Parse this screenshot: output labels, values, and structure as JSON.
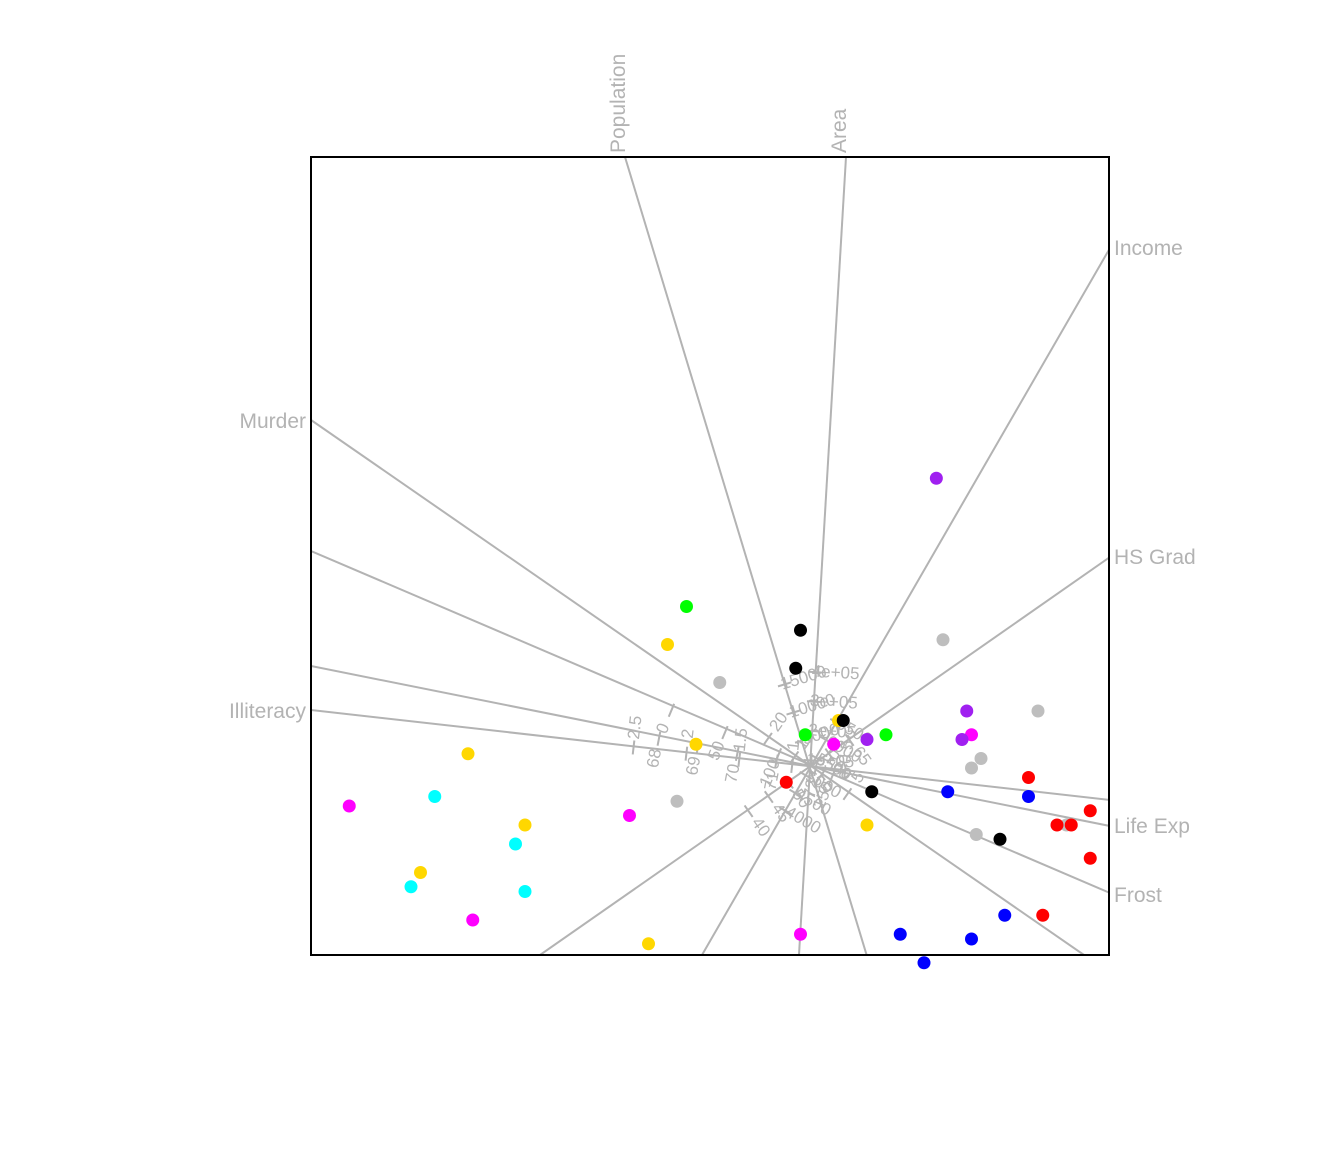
{
  "chart_data": {
    "type": "scatter",
    "title": "",
    "frame": true,
    "grid": false,
    "axes": [
      {
        "name": "Population",
        "ticks": [
          "5000",
          "10000",
          "15000"
        ]
      },
      {
        "name": "Area",
        "ticks": [
          "1e+05",
          "2e+05",
          "3e+05",
          "4e+05"
        ]
      },
      {
        "name": "Income",
        "ticks": [
          "4000",
          "4500",
          "5000",
          "5500",
          "6000",
          "6500"
        ]
      },
      {
        "name": "HS Grad",
        "ticks": [
          "40",
          "45",
          "50",
          "55",
          "60",
          "65"
        ]
      },
      {
        "name": "Life Exp",
        "ticks": [
          "68",
          "69",
          "70",
          "71",
          "72"
        ]
      },
      {
        "name": "Frost",
        "ticks": [
          "0",
          "50",
          "100",
          "150"
        ]
      },
      {
        "name": "Murder",
        "ticks": [
          "5",
          "10",
          "15",
          "20"
        ]
      },
      {
        "name": "Illiteracy",
        "ticks": [
          "0.5",
          "1",
          "1.5",
          "2",
          "2.5"
        ]
      }
    ],
    "point_colors": {
      "red": "#ff0000",
      "gold": "#ffd700",
      "magenta": "#ff00ff",
      "cyan": "#00ffff",
      "grey": "#bebebe",
      "black": "#000000",
      "green": "#00ff00",
      "blue": "#0000ff",
      "purple": "#a020f0"
    },
    "points": [
      {
        "x": 1.7,
        "y": 0.35,
        "c": "magenta"
      },
      {
        "x": 1.33,
        "y": 3.05,
        "c": "purple"
      },
      {
        "x": 0.25,
        "y": 0.25,
        "c": "magenta"
      },
      {
        "x": -1.9,
        "y": -0.5,
        "c": "magenta"
      },
      {
        "x": -0.1,
        "y": -1.75,
        "c": "magenta"
      },
      {
        "x": -4.85,
        "y": -0.4,
        "c": "magenta"
      },
      {
        "x": -3.55,
        "y": -1.6,
        "c": "magenta"
      },
      {
        "x": -3.95,
        "y": -0.3,
        "c": "cyan"
      },
      {
        "x": -3.1,
        "y": -0.8,
        "c": "cyan"
      },
      {
        "x": -3.0,
        "y": -1.3,
        "c": "cyan"
      },
      {
        "x": -4.2,
        "y": -1.25,
        "c": "cyan"
      },
      {
        "x": -1.3,
        "y": 1.7,
        "c": "green"
      },
      {
        "x": -0.05,
        "y": 0.35,
        "c": "green"
      },
      {
        "x": 0.8,
        "y": 0.35,
        "c": "green"
      },
      {
        "x": -1.5,
        "y": 1.3,
        "c": "gold"
      },
      {
        "x": -1.2,
        "y": 0.25,
        "c": "gold"
      },
      {
        "x": 0.3,
        "y": 0.5,
        "c": "gold"
      },
      {
        "x": -3.6,
        "y": 0.15,
        "c": "gold"
      },
      {
        "x": -3.0,
        "y": -0.6,
        "c": "gold"
      },
      {
        "x": -4.1,
        "y": -1.1,
        "c": "gold"
      },
      {
        "x": -1.7,
        "y": -1.85,
        "c": "gold"
      },
      {
        "x": 0.6,
        "y": -0.6,
        "c": "gold"
      },
      {
        "x": -0.1,
        "y": 1.45,
        "c": "black"
      },
      {
        "x": -0.15,
        "y": 1.05,
        "c": "black"
      },
      {
        "x": 0.35,
        "y": 0.5,
        "c": "black"
      },
      {
        "x": 0.65,
        "y": -0.25,
        "c": "black"
      },
      {
        "x": 2.0,
        "y": -0.75,
        "c": "black"
      },
      {
        "x": -0.95,
        "y": 0.9,
        "c": "grey"
      },
      {
        "x": -1.4,
        "y": -0.35,
        "c": "grey"
      },
      {
        "x": 1.4,
        "y": 1.35,
        "c": "grey"
      },
      {
        "x": 2.4,
        "y": 0.6,
        "c": "grey"
      },
      {
        "x": 1.7,
        "y": 0.0,
        "c": "grey"
      },
      {
        "x": 1.8,
        "y": 0.1,
        "c": "grey"
      },
      {
        "x": 1.75,
        "y": -0.7,
        "c": "grey"
      },
      {
        "x": 2.7,
        "y": -0.6,
        "c": "grey"
      },
      {
        "x": 0.6,
        "y": 0.3,
        "c": "purple"
      },
      {
        "x": 1.65,
        "y": 0.6,
        "c": "purple"
      },
      {
        "x": 1.6,
        "y": 0.3,
        "c": "purple"
      },
      {
        "x": -0.25,
        "y": -0.15,
        "c": "red"
      },
      {
        "x": 2.3,
        "y": -0.1,
        "c": "red"
      },
      {
        "x": 2.95,
        "y": -0.45,
        "c": "red"
      },
      {
        "x": 2.6,
        "y": -0.6,
        "c": "red"
      },
      {
        "x": 2.75,
        "y": -0.6,
        "c": "red"
      },
      {
        "x": 2.95,
        "y": -0.95,
        "c": "red"
      },
      {
        "x": 2.45,
        "y": -1.55,
        "c": "red"
      },
      {
        "x": 1.45,
        "y": -0.25,
        "c": "blue"
      },
      {
        "x": 2.3,
        "y": -0.3,
        "c": "blue"
      },
      {
        "x": 0.95,
        "y": -1.75,
        "c": "blue"
      },
      {
        "x": 1.2,
        "y": -2.05,
        "c": "blue"
      },
      {
        "x": 1.7,
        "y": -1.8,
        "c": "blue"
      },
      {
        "x": 2.05,
        "y": -1.55,
        "c": "blue"
      }
    ]
  }
}
